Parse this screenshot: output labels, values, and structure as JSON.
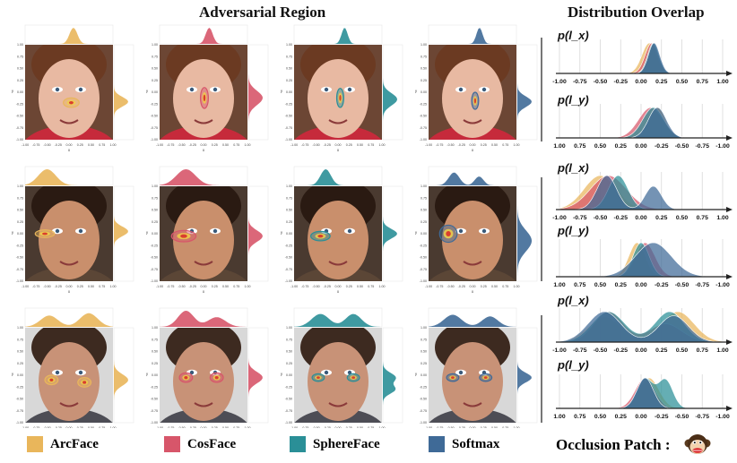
{
  "titles": {
    "left": "Adversarial Region",
    "right": "Distribution Overlap"
  },
  "colors": {
    "ArcFace": "#e9b65b",
    "CosFace": "#d7566a",
    "SphereFace": "#2a8f97",
    "Softmax": "#3f6a97"
  },
  "legend": [
    {
      "name": "ArcFace",
      "color": "#e9b65b"
    },
    {
      "name": "CosFace",
      "color": "#d7566a"
    },
    {
      "name": "SphereFace",
      "color": "#2a8f97"
    },
    {
      "name": "Softmax",
      "color": "#3f6a97"
    }
  ],
  "occlusion_label": "Occlusion Patch :",
  "occlusion_icon": "monkey-face-icon",
  "chart_data": {
    "type": "area",
    "heatmap_ticks": [
      "-1.00",
      "-0.75",
      "-0.50",
      "-0.25",
      "0.00",
      "0.25",
      "0.50",
      "0.75",
      "1.00"
    ],
    "heatmap_axis_labels": {
      "x": "x",
      "y": "y"
    },
    "rows": [
      {
        "face": {
          "skin": "#e8b9a2",
          "hair": "#6b3a22",
          "bg": "#6c4634",
          "cloth": "#c62a3b"
        },
        "x_label": "p(l_x)",
        "y_label": "p(l_y)",
        "x_ticks": [
          "-1.00",
          "-0.75",
          "-0.50",
          "-0.25",
          "0.00",
          "0.25",
          "0.50",
          "0.75",
          "1.00"
        ],
        "y_ticks": [
          "1.00",
          "0.75",
          "0.50",
          "0.25",
          "0.00",
          "-0.25",
          "-0.50",
          "-0.75",
          "-1.00"
        ],
        "heat_regions": [
          [
            {
              "cx": 0.05,
              "cy": -0.22,
              "sx": 0.18,
              "sy": 0.1
            }
          ],
          [
            {
              "cx": 0.02,
              "cy": -0.12,
              "sx": 0.09,
              "sy": 0.22
            }
          ],
          [
            {
              "cx": 0.05,
              "cy": -0.12,
              "sx": 0.08,
              "sy": 0.2
            }
          ],
          [
            {
              "cx": 0.06,
              "cy": -0.18,
              "sx": 0.08,
              "sy": 0.18
            }
          ]
        ],
        "x_dist": [
          {
            "model": "ArcFace",
            "mu": [
              0.1
            ],
            "sd": [
              0.09
            ],
            "w": [
              1
            ]
          },
          {
            "model": "CosFace",
            "mu": [
              0.13
            ],
            "sd": [
              0.08
            ],
            "w": [
              1
            ]
          },
          {
            "model": "SphereFace",
            "mu": [
              0.15
            ],
            "sd": [
              0.07
            ],
            "w": [
              1
            ]
          },
          {
            "model": "Softmax",
            "mu": [
              0.16
            ],
            "sd": [
              0.07
            ],
            "w": [
              1
            ]
          }
        ],
        "y_dist": [
          {
            "model": "ArcFace",
            "mu": [
              -0.2
            ],
            "sd": [
              0.1
            ],
            "w": [
              1
            ]
          },
          {
            "model": "CosFace",
            "mu": [
              -0.12
            ],
            "sd": [
              0.15
            ],
            "w": [
              1
            ]
          },
          {
            "model": "SphereFace",
            "mu": [
              -0.15
            ],
            "sd": [
              0.13
            ],
            "w": [
              1
            ]
          },
          {
            "model": "Softmax",
            "mu": [
              -0.2
            ],
            "sd": [
              0.11
            ],
            "w": [
              1
            ]
          }
        ]
      },
      {
        "face": {
          "skin": "#c98f6c",
          "hair": "#2a1a12",
          "bg": "#4a3a30",
          "cloth": "#5b4636"
        },
        "x_label": "p(l_x)",
        "y_label": "p(l_y)",
        "x_ticks": [
          "-1.00",
          "-0.75",
          "-0.50",
          "-0.25",
          "0.00",
          "0.25",
          "0.50",
          "0.75",
          "1.00"
        ],
        "y_ticks": [
          "1.00",
          "0.75",
          "0.50",
          "0.25",
          "0.00",
          "-0.25",
          "-0.50",
          "-0.75",
          "-1.00"
        ],
        "heat_regions": [
          [
            {
              "cx": -0.55,
              "cy": 0.0,
              "sx": 0.22,
              "sy": 0.08
            }
          ],
          [
            {
              "cx": -0.45,
              "cy": -0.05,
              "sx": 0.28,
              "sy": 0.12
            }
          ],
          [
            {
              "cx": -0.4,
              "cy": -0.05,
              "sx": 0.22,
              "sy": 0.1
            }
          ],
          [
            {
              "cx": -0.55,
              "cy": 0.0,
              "sx": 0.2,
              "sy": 0.18
            }
          ]
        ],
        "x_dist": [
          {
            "model": "ArcFace",
            "mu": [
              -0.5
            ],
            "sd": [
              0.2
            ],
            "w": [
              1
            ]
          },
          {
            "model": "CosFace",
            "mu": [
              -0.4
            ],
            "sd": [
              0.22
            ],
            "w": [
              1
            ]
          },
          {
            "model": "SphereFace",
            "mu": [
              -0.28
            ],
            "sd": [
              0.12
            ],
            "w": [
              1
            ]
          },
          {
            "model": "Softmax",
            "mu": [
              -0.42,
              0.15
            ],
            "sd": [
              0.12,
              0.1
            ],
            "w": [
              0.8,
              0.55
            ]
          }
        ],
        "y_dist": [
          {
            "model": "ArcFace",
            "mu": [
              0.05
            ],
            "sd": [
              0.1
            ],
            "w": [
              1
            ]
          },
          {
            "model": "CosFace",
            "mu": [
              -0.05
            ],
            "sd": [
              0.12
            ],
            "w": [
              1
            ]
          },
          {
            "model": "SphereFace",
            "mu": [
              0.0
            ],
            "sd": [
              0.1
            ],
            "w": [
              1
            ]
          },
          {
            "model": "Softmax",
            "mu": [
              -0.15
            ],
            "sd": [
              0.22
            ],
            "w": [
              1
            ]
          }
        ]
      },
      {
        "face": {
          "skin": "#c89277",
          "hair": "#3d2a20",
          "bg": "#d8d8d8",
          "cloth": "#4d4d55"
        },
        "x_label": "p(l_x)",
        "y_label": "p(l_y)",
        "x_ticks": [
          "-1.00",
          "-0.75",
          "-0.50",
          "-0.25",
          "0.00",
          "0.25",
          "0.50",
          "0.75",
          "1.00"
        ],
        "y_ticks": [
          "1.00",
          "0.75",
          "0.50",
          "0.25",
          "0.00",
          "-0.25",
          "-0.50",
          "-0.75",
          "-1.00"
        ],
        "heat_regions": [
          [
            {
              "cx": -0.4,
              "cy": -0.1,
              "sx": 0.15,
              "sy": 0.1
            },
            {
              "cx": 0.35,
              "cy": -0.15,
              "sx": 0.15,
              "sy": 0.1
            }
          ],
          [
            {
              "cx": -0.4,
              "cy": -0.05,
              "sx": 0.15,
              "sy": 0.1
            },
            {
              "cx": 0.3,
              "cy": -0.05,
              "sx": 0.15,
              "sy": 0.1
            }
          ],
          [
            {
              "cx": -0.45,
              "cy": -0.05,
              "sx": 0.14,
              "sy": 0.08
            },
            {
              "cx": 0.35,
              "cy": -0.05,
              "sx": 0.14,
              "sy": 0.08
            }
          ],
          [
            {
              "cx": -0.45,
              "cy": -0.05,
              "sx": 0.14,
              "sy": 0.08
            },
            {
              "cx": 0.3,
              "cy": -0.05,
              "sx": 0.14,
              "sy": 0.08
            }
          ]
        ],
        "x_dist": [
          {
            "model": "ArcFace",
            "mu": [
              -0.45,
              0.45
            ],
            "sd": [
              0.2,
              0.2
            ],
            "w": [
              0.7,
              0.85
            ]
          },
          {
            "model": "CosFace",
            "mu": [
              -0.4,
              0.3
            ],
            "sd": [
              0.18,
              0.2
            ],
            "w": [
              1.0,
              0.6
            ]
          },
          {
            "model": "SphereFace",
            "mu": [
              -0.4,
              0.35
            ],
            "sd": [
              0.2,
              0.18
            ],
            "w": [
              0.8,
              0.8
            ]
          },
          {
            "model": "Softmax",
            "mu": [
              -0.45,
              0.4
            ],
            "sd": [
              0.2,
              0.18
            ],
            "w": [
              0.75,
              0.65
            ]
          }
        ],
        "y_dist": [
          {
            "model": "ArcFace",
            "mu": [
              -0.1
            ],
            "sd": [
              0.12
            ],
            "w": [
              1
            ]
          },
          {
            "model": "CosFace",
            "mu": [
              -0.05
            ],
            "sd": [
              0.12
            ],
            "w": [
              1
            ]
          },
          {
            "model": "SphereFace",
            "mu": [
              -0.05,
              -0.3
            ],
            "sd": [
              0.1,
              0.09
            ],
            "w": [
              0.9,
              0.85
            ]
          },
          {
            "model": "Softmax",
            "mu": [
              -0.05
            ],
            "sd": [
              0.1
            ],
            "w": [
              1
            ]
          }
        ]
      }
    ]
  }
}
